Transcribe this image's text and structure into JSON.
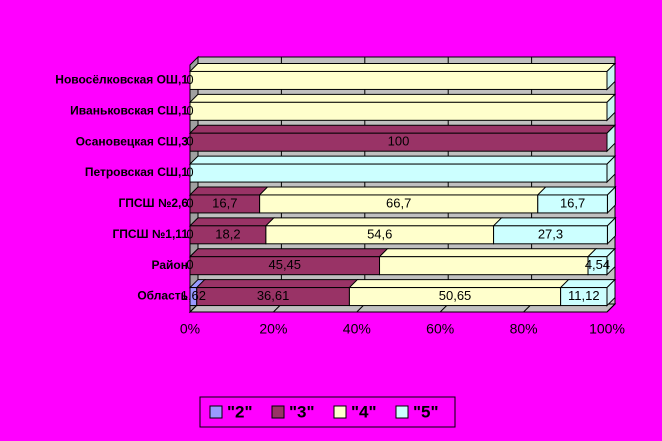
{
  "chart_data": {
    "type": "stacked_bar_horizontal_3d",
    "categories": [
      "Новосёлковская ОШ,1",
      "Иваньковская СШ,1",
      "Осановецкая СШ,3",
      "Петровская СШ,1",
      "ГПСШ №2,6",
      "ГПСШ №1,11",
      "Район",
      "Область"
    ],
    "series": [
      {
        "name": "\"2\"",
        "color": "#9999ff",
        "values": [
          0,
          0,
          0,
          0,
          0,
          0,
          0,
          1.62
        ],
        "value_labels": [
          "0",
          "0",
          "0",
          "0",
          "0",
          "0",
          "0",
          "1,62"
        ]
      },
      {
        "name": "\"3\"",
        "color": "#993366",
        "values": [
          null,
          null,
          100,
          null,
          16.7,
          18.2,
          45.45,
          36.61
        ],
        "value_labels": [
          null,
          null,
          "100",
          null,
          "16,7",
          "18,2",
          "45,45",
          "36,61"
        ]
      },
      {
        "name": "\"4\"",
        "color": "#ffffcc",
        "values": [
          100,
          100,
          null,
          null,
          66.7,
          54.6,
          50,
          50.65
        ],
        "value_labels": [
          null,
          null,
          null,
          null,
          "66,7",
          "54,6",
          null,
          "50,65"
        ]
      },
      {
        "name": "\"5\"",
        "color": "#ccffff",
        "values": [
          0,
          0,
          0,
          100,
          16.7,
          27.3,
          4.54,
          11.12
        ],
        "value_labels": [
          null,
          null,
          null,
          null,
          "16,7",
          "27,3",
          "4,54",
          "11,12"
        ]
      }
    ],
    "xlim": [
      0,
      100
    ],
    "xticks": [
      {
        "value": 0,
        "label": "0%"
      },
      {
        "value": 20,
        "label": "20%"
      },
      {
        "value": 40,
        "label": "40%"
      },
      {
        "value": 60,
        "label": "60%"
      },
      {
        "value": 80,
        "label": "80%"
      },
      {
        "value": 100,
        "label": "100%"
      }
    ],
    "grid": true
  }
}
